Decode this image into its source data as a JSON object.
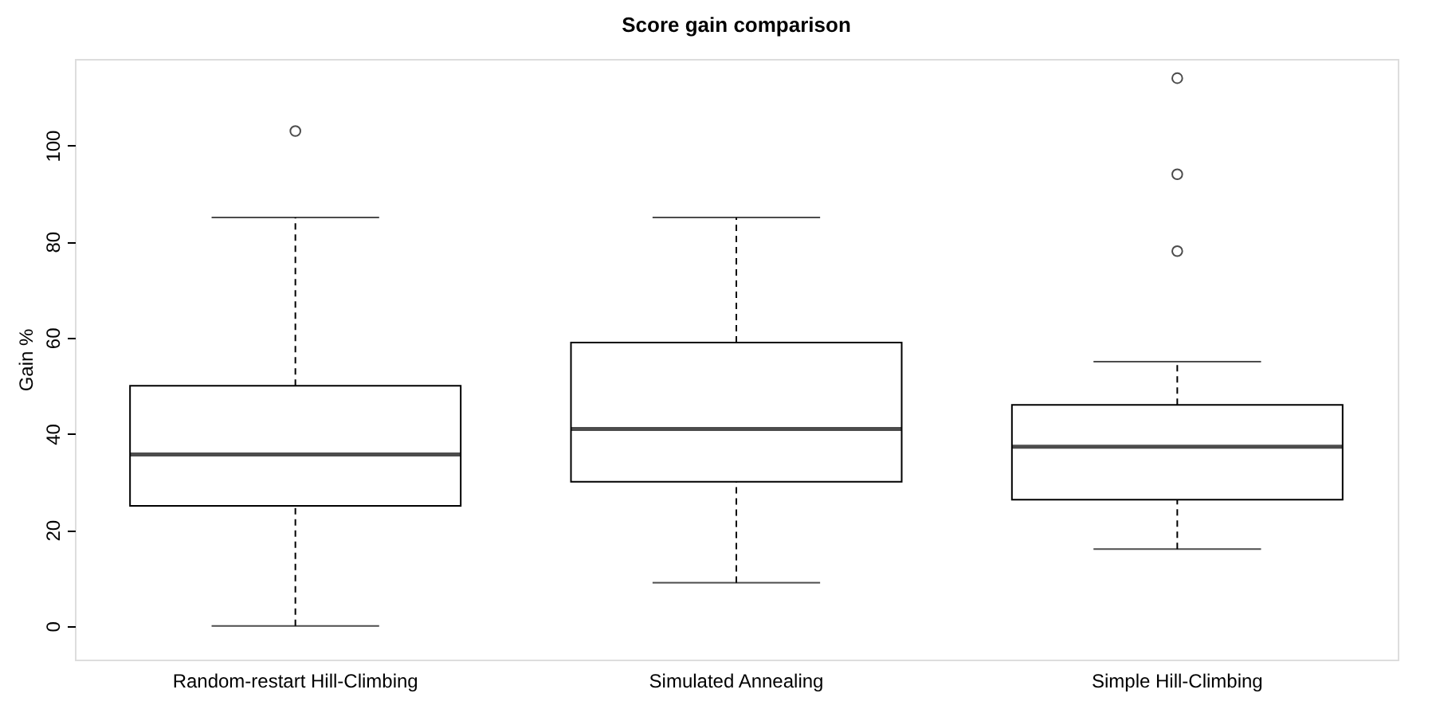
{
  "chart_data": {
    "type": "box",
    "title": "Score gain comparison",
    "ylabel": "Gain %",
    "categories": [
      "Random-restart Hill-Climbing",
      "Simulated Annealing",
      "Simple Hill-Climbing"
    ],
    "boxes": [
      {
        "low": 0,
        "q1": 25,
        "median": 35.7,
        "q3": 50,
        "high": 85,
        "outliers": [
          103
        ]
      },
      {
        "low": 9,
        "q1": 30,
        "median": 41,
        "q3": 59,
        "high": 85
      },
      {
        "low": 16,
        "q1": 26.3,
        "median": 37.3,
        "q3": 46,
        "high": 55,
        "outliers": [
          114,
          94,
          78
        ]
      }
    ],
    "ylim": [
      -7,
      118
    ],
    "yticks": [
      0,
      20,
      40,
      60,
      80,
      100
    ],
    "grid": false,
    "marker": "circle"
  }
}
